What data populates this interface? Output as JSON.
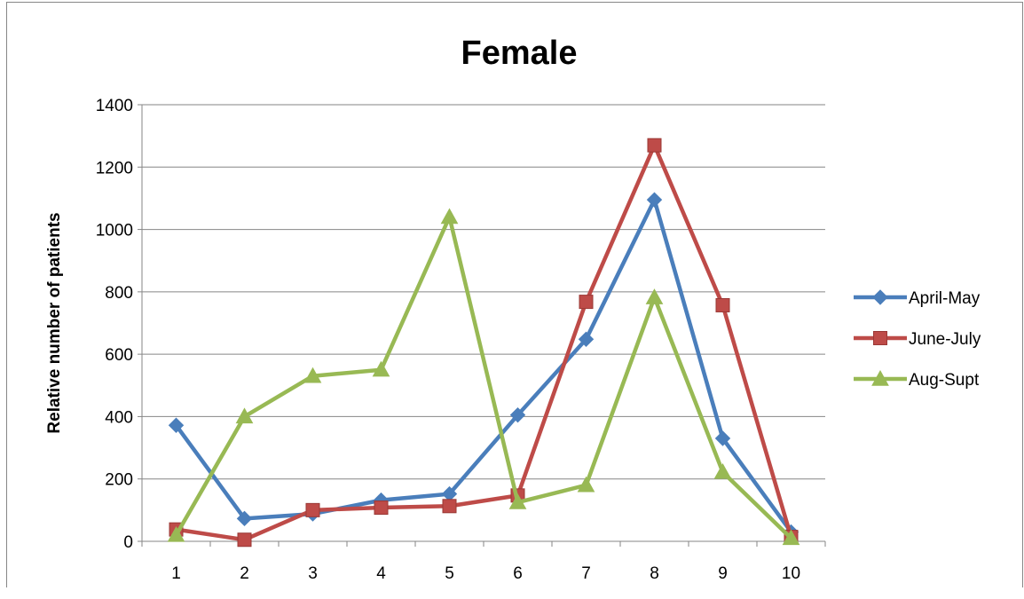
{
  "chart_data": {
    "type": "line",
    "title": "Female",
    "xlabel": "",
    "ylabel": "Relative number of patients",
    "x": [
      "1",
      "2",
      "3",
      "4",
      "5",
      "6",
      "7",
      "8",
      "9",
      "10"
    ],
    "ylim": [
      0,
      1400
    ],
    "yticks": [
      "0",
      "200",
      "400",
      "600",
      "800",
      "1000",
      "1200",
      "1400"
    ],
    "grid": "horizontal",
    "legend_position": "right",
    "series": [
      {
        "name": "April-May",
        "color": "#4A7EBB",
        "marker": "diamond",
        "values": [
          372,
          73,
          88,
          132,
          152,
          405,
          648,
          1095,
          330,
          30
        ]
      },
      {
        "name": "June-July",
        "color": "#BE4B48",
        "marker": "square",
        "values": [
          38,
          5,
          100,
          108,
          113,
          147,
          768,
          1270,
          757,
          14
        ]
      },
      {
        "name": "Aug-Supt",
        "color": "#98B954",
        "marker": "triangle",
        "values": [
          20,
          400,
          530,
          550,
          1040,
          125,
          180,
          782,
          222,
          10
        ]
      }
    ]
  }
}
